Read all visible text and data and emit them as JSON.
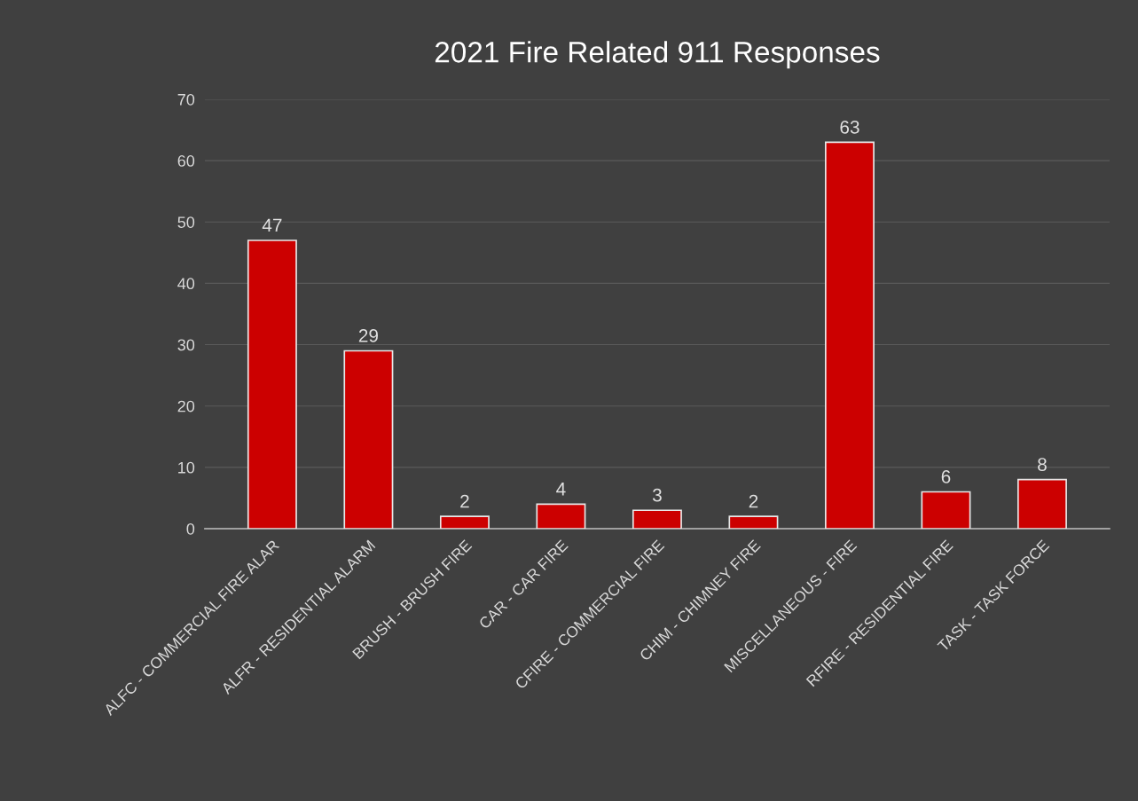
{
  "chart_data": {
    "type": "bar",
    "title": "2021 Fire Related 911 Responses",
    "categories": [
      "ALFC - COMMERCIAL FIRE ALAR",
      "ALFR - RESIDENTIAL ALARM",
      "BRUSH - BRUSH FIRE",
      "CAR - CAR FIRE",
      "CFIRE - COMMERCIAL FIRE",
      "CHIM - CHIMNEY FIRE",
      "MISCELLANEOUS - FIRE",
      "RFIRE - RESIDENTIAL FIRE",
      "TASK - TASK FORCE"
    ],
    "values": [
      47,
      29,
      2,
      4,
      3,
      2,
      63,
      6,
      8
    ],
    "color": "#cc0000",
    "ylim": [
      0,
      70
    ],
    "yticks": [
      0,
      10,
      20,
      30,
      40,
      50,
      60,
      70
    ],
    "grid": "y",
    "data_labels": true
  }
}
